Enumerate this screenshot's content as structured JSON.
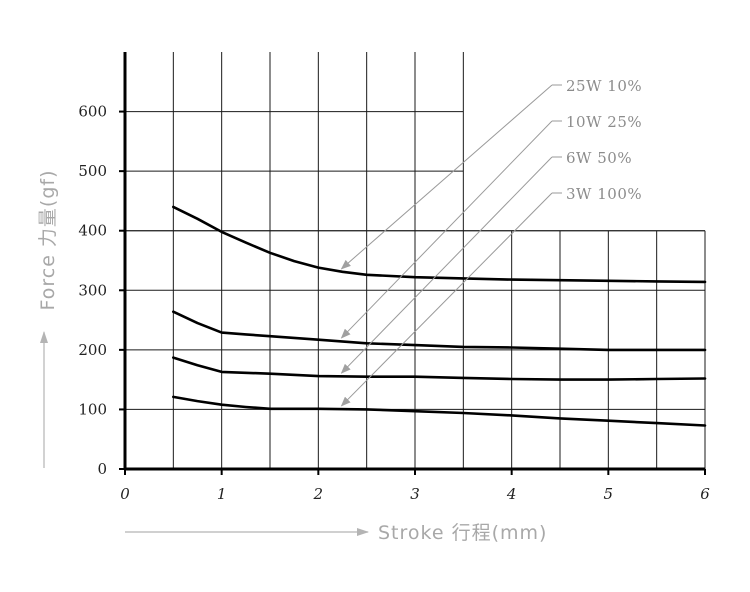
{
  "chart_data": {
    "type": "line",
    "xlabel": "Stroke 行程(mm)",
    "ylabel": "Force 力量(gf)",
    "xlim": [
      0,
      6
    ],
    "ylim": [
      0,
      700
    ],
    "x_ticks": [
      "0",
      "1",
      "2",
      "3",
      "4",
      "5",
      "6"
    ],
    "y_ticks": [
      "0",
      "100",
      "200",
      "300",
      "400",
      "500",
      "600"
    ],
    "grid": true,
    "legend_position": "top-right",
    "series": [
      {
        "name": "25W 10%",
        "x": [
          0.5,
          0.75,
          1.0,
          1.25,
          1.5,
          1.75,
          2.0,
          2.25,
          2.5,
          3.0,
          3.5,
          4.0,
          4.5,
          5.0,
          5.5,
          6.0
        ],
        "y": [
          440,
          420,
          398,
          380,
          363,
          349,
          338,
          331,
          326,
          322,
          320,
          318,
          317,
          316,
          315,
          314
        ]
      },
      {
        "name": "10W 25%",
        "x": [
          0.5,
          0.75,
          1.0,
          1.25,
          1.5,
          2.0,
          2.5,
          3.0,
          3.5,
          4.0,
          4.5,
          5.0,
          5.5,
          6.0
        ],
        "y": [
          264,
          245,
          229,
          226,
          223,
          217,
          211,
          208,
          205,
          204,
          202,
          200,
          200,
          200
        ]
      },
      {
        "name": "6W 50%",
        "x": [
          0.5,
          0.75,
          1.0,
          1.5,
          2.0,
          2.5,
          3.0,
          3.5,
          4.0,
          4.5,
          5.0,
          5.5,
          6.0
        ],
        "y": [
          187,
          174,
          163,
          160,
          156,
          155,
          155,
          153,
          151,
          150,
          150,
          151,
          152
        ]
      },
      {
        "name": "3W 100%",
        "x": [
          0.5,
          0.75,
          1.0,
          1.25,
          1.5,
          1.75,
          2.0,
          2.5,
          3.0,
          3.5,
          4.0,
          4.5,
          5.0,
          5.5,
          6.0
        ],
        "y": [
          121,
          114,
          108,
          104,
          101,
          101,
          101,
          100,
          97,
          94,
          90,
          85,
          81,
          77,
          73
        ]
      }
    ]
  }
}
